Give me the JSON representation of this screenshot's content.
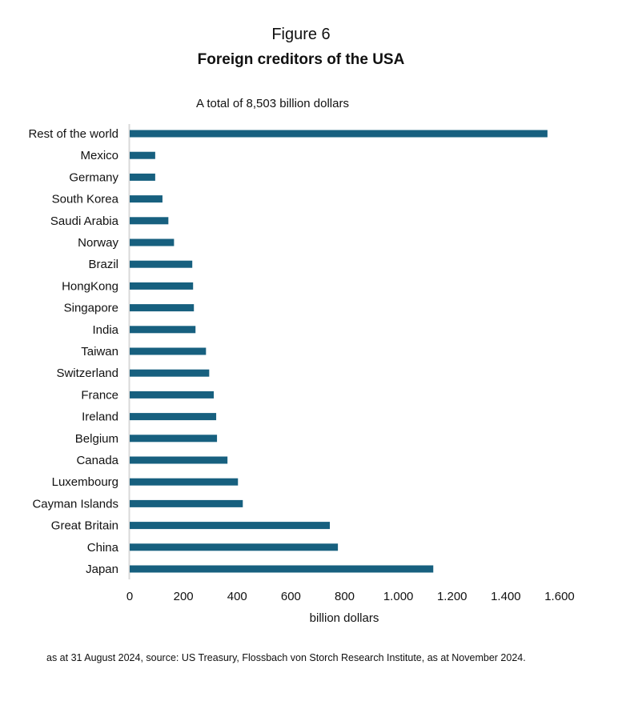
{
  "chart_data": {
    "type": "bar",
    "orientation": "horizontal",
    "title": "Figure 6",
    "subtitle": "Foreign creditors of the USA",
    "annotation": "A total of 8,503 billion dollars",
    "xlabel": "billion dollars",
    "ylabel": "",
    "xlim": [
      0,
      1600
    ],
    "xticks": [
      "0",
      "200",
      "400",
      "600",
      "800",
      "1.000",
      "1.200",
      "1.400",
      "1.600"
    ],
    "grid": false,
    "bar_color": "#17607f",
    "categories": [
      "Rest of the world",
      "Mexico",
      "Germany",
      "South Korea",
      "Saudi Arabia",
      "Norway",
      "Brazil",
      "HongKong",
      "Singapore",
      "India",
      "Taiwan",
      "Switzerland",
      "France",
      "Ireland",
      "Belgium",
      "Canada",
      "Luxembourg",
      "Cayman Islands",
      "Great Britain",
      "China",
      "Japan"
    ],
    "values": [
      1555,
      95,
      95,
      122,
      144,
      165,
      233,
      236,
      239,
      245,
      284,
      296,
      313,
      322,
      325,
      364,
      403,
      421,
      745,
      775,
      1130
    ]
  },
  "footnote": "as at 31 August 2024, source: US Treasury, Flossbach von Storch Research Institute, as at November 2024."
}
